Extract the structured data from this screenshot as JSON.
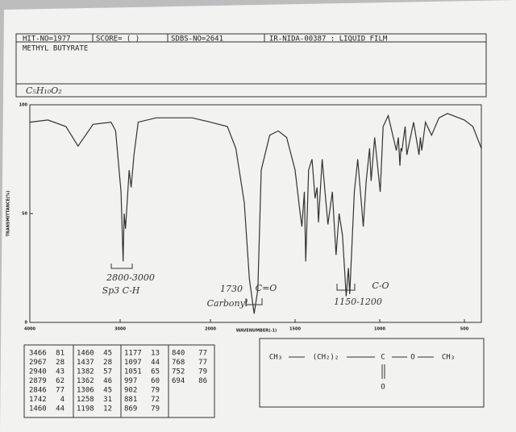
{
  "header": {
    "hit_no": "HIT-NO=1977",
    "score": "SCORE=  (   )",
    "sdbs_no": "SDBS-NO=2641",
    "source": "IR-NIDA-00387 : LIQUID FILM",
    "compound": "METHYL BUTYRATE",
    "formula": "C₅H₁₀O₂"
  },
  "chart_data": {
    "type": "line",
    "xlabel": "WAVENUMBER(-1)",
    "ylabel": "TRANSMITTANCE(%)",
    "color": "#333333",
    "xlim": [
      4000,
      400
    ],
    "xscale_break": 2000,
    "xticks": [
      4000,
      3000,
      2000,
      1500,
      1000,
      500
    ],
    "ylim": [
      0,
      100
    ],
    "yticks": [
      0,
      50,
      100
    ],
    "x": [
      4000,
      3800,
      3600,
      3466,
      3300,
      3100,
      3050,
      2990,
      2967,
      2955,
      2940,
      2900,
      2879,
      2846,
      2800,
      2600,
      2400,
      2200,
      2100,
      2000,
      1900,
      1850,
      1800,
      1770,
      1742,
      1720,
      1700,
      1650,
      1600,
      1550,
      1500,
      1470,
      1460,
      1445,
      1437,
      1420,
      1400,
      1382,
      1370,
      1362,
      1340,
      1306,
      1280,
      1258,
      1240,
      1220,
      1198,
      1185,
      1177,
      1150,
      1130,
      1097,
      1080,
      1060,
      1051,
      1030,
      997,
      980,
      950,
      902,
      890,
      881,
      875,
      869,
      850,
      840,
      800,
      768,
      760,
      752,
      730,
      694,
      650,
      600,
      500,
      450,
      400
    ],
    "values": [
      92,
      93,
      90,
      81,
      91,
      92,
      88,
      60,
      28,
      50,
      43,
      70,
      62,
      77,
      92,
      94,
      94,
      94,
      93,
      92,
      90,
      80,
      55,
      20,
      4,
      15,
      70,
      86,
      88,
      85,
      70,
      50,
      44,
      60,
      28,
      70,
      75,
      57,
      62,
      46,
      75,
      45,
      60,
      31,
      50,
      40,
      12,
      25,
      13,
      60,
      75,
      44,
      65,
      80,
      65,
      85,
      60,
      90,
      95,
      79,
      85,
      72,
      80,
      79,
      90,
      77,
      92,
      77,
      85,
      79,
      92,
      86,
      94,
      96,
      93,
      90,
      80
    ],
    "annotations": [
      "2800-3000",
      "Sp3 C-H",
      "1730",
      "Carbonyl",
      "C=O",
      "C-O",
      "1150-1200"
    ]
  },
  "peak_table": {
    "columns": [
      [
        [
          3466,
          81
        ],
        [
          2967,
          28
        ],
        [
          2940,
          43
        ],
        [
          2879,
          62
        ],
        [
          2846,
          77
        ],
        [
          1742,
          4
        ],
        [
          1460,
          44
        ]
      ],
      [
        [
          1460,
          45
        ],
        [
          1437,
          28
        ],
        [
          1382,
          57
        ],
        [
          1362,
          46
        ],
        [
          1306,
          45
        ],
        [
          1258,
          31
        ],
        [
          1198,
          12
        ]
      ],
      [
        [
          1177,
          13
        ],
        [
          1097,
          44
        ],
        [
          1051,
          65
        ],
        [
          997,
          60
        ],
        [
          902,
          79
        ],
        [
          881,
          72
        ],
        [
          869,
          79
        ]
      ],
      [
        [
          840,
          77
        ],
        [
          768,
          77
        ],
        [
          752,
          79
        ],
        [
          694,
          86
        ]
      ]
    ]
  },
  "structure": {
    "parts": [
      "CH₃",
      "(CH₂)₂",
      "C",
      "O",
      "CH₃"
    ],
    "carbonyl_o": "O"
  }
}
